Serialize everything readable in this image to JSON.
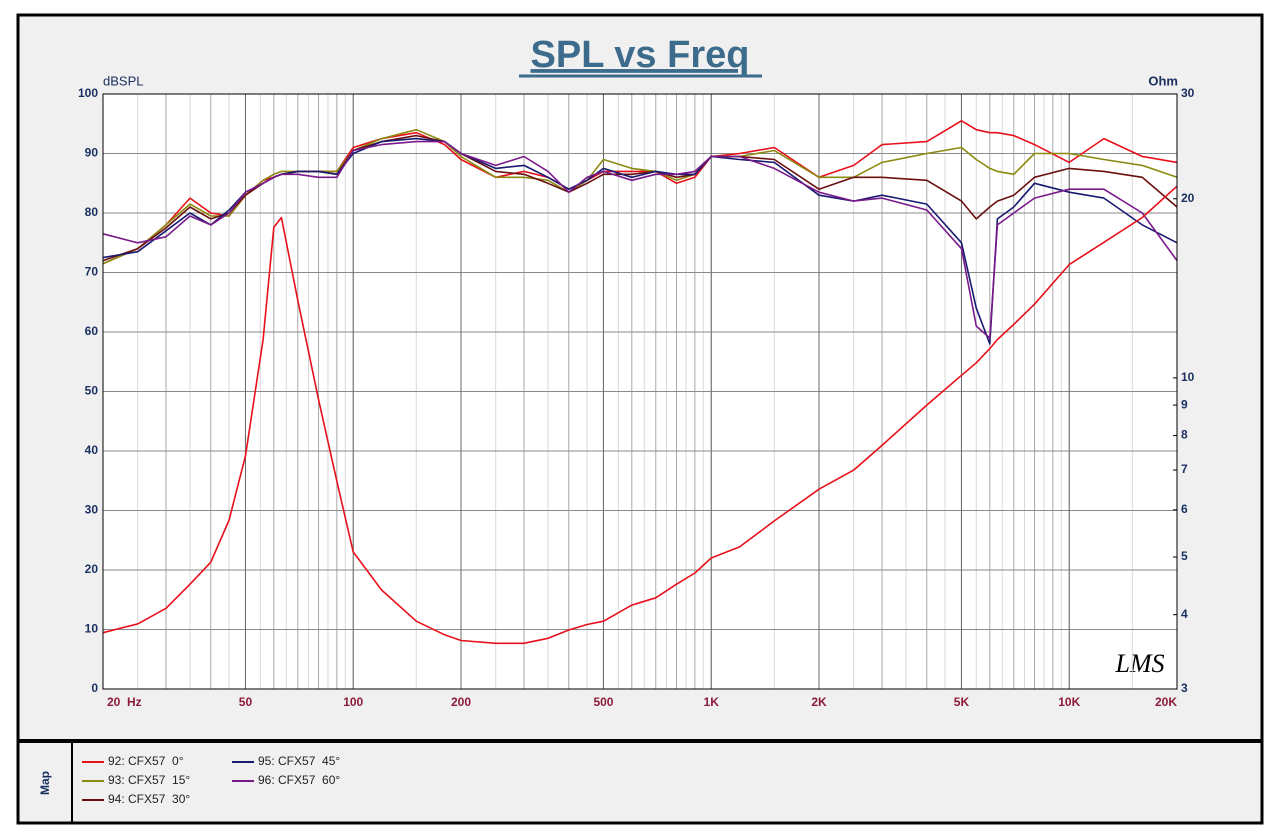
{
  "chart_data": {
    "type": "line",
    "title": "SPL vs Freq",
    "ylabel": "dBSPL",
    "y2label": "Ohm",
    "watermark": "LMS",
    "legend_title": "Map",
    "log_x": true,
    "y2_log": true,
    "grid": true,
    "x": [
      20,
      25,
      30,
      35,
      40,
      45,
      50,
      56,
      60,
      63,
      70,
      80,
      90,
      100,
      120,
      150,
      180,
      200,
      250,
      300,
      350,
      400,
      450,
      500,
      600,
      700,
      800,
      900,
      1000,
      1200,
      1500,
      2000,
      2500,
      3000,
      4000,
      5000,
      5500,
      6000,
      6300,
      7000,
      8000,
      10000,
      12500,
      16000,
      20000
    ],
    "xlim": [
      20,
      20000
    ],
    "xticks": [
      {
        "value": 20,
        "label": "20  Hz"
      },
      50,
      100,
      200,
      500,
      {
        "value": 1000,
        "label": "1K"
      },
      {
        "value": 2000,
        "label": "2K"
      },
      {
        "value": 5000,
        "label": "5K"
      },
      {
        "value": 10000,
        "label": "10K"
      },
      {
        "value": 20000,
        "label": "20K"
      }
    ],
    "ylim": [
      0,
      100
    ],
    "yticks": [
      0,
      10,
      20,
      30,
      40,
      50,
      60,
      70,
      80,
      90,
      100
    ],
    "y2lim": [
      3,
      30
    ],
    "y2ticks": [
      3,
      4,
      5,
      6,
      7,
      8,
      9,
      10,
      20,
      30
    ],
    "series": [
      {
        "name": "92: CFX57  0°",
        "color": "#e8101a",
        "values": [
          71.5,
          74,
          78,
          82.5,
          80,
          79.5,
          83,
          85.5,
          86,
          86.5,
          87,
          87,
          87,
          91,
          92.5,
          93.5,
          91.5,
          89,
          86,
          87,
          86,
          84,
          85.5,
          87,
          87,
          87,
          85,
          86,
          89.5,
          90,
          91,
          86,
          88,
          91.5,
          92,
          95.5,
          94,
          93.5,
          93.5,
          93,
          91.5,
          88.5,
          92.5,
          89.5,
          88.5
        ]
      },
      {
        "name": "93: CFX57  15°",
        "color": "#8a8a10",
        "values": [
          71.5,
          74,
          78,
          81.5,
          79.5,
          79.5,
          83,
          85.5,
          86.5,
          87,
          87,
          87,
          87,
          90.5,
          92.5,
          94,
          92,
          89.5,
          86,
          86,
          85.5,
          83.5,
          85.5,
          89,
          87.5,
          87,
          85.5,
          86.5,
          89.5,
          89.5,
          90.5,
          86,
          86,
          88.5,
          90,
          91,
          89,
          87.5,
          87,
          86.5,
          90,
          90,
          89,
          88,
          86
        ]
      },
      {
        "name": "94: CFX57  30°",
        "color": "#6a1010",
        "values": [
          72,
          74,
          77.5,
          81,
          79,
          80,
          83,
          85,
          86,
          86.5,
          87,
          87,
          86.5,
          90.5,
          92,
          93,
          92,
          90,
          87,
          86.5,
          85,
          83.5,
          85,
          86.5,
          86.5,
          87,
          86,
          86.5,
          89.5,
          89.5,
          89,
          84,
          86,
          86,
          85.5,
          82,
          79,
          81,
          82,
          83,
          86,
          87.5,
          87,
          86,
          81
        ]
      },
      {
        "name": "95: CFX57  45°",
        "color": "#1a1a70",
        "values": [
          72.5,
          73.5,
          77,
          80,
          78,
          80.5,
          83.5,
          85,
          86,
          86.5,
          87,
          87,
          86.5,
          90,
          92,
          92.5,
          92,
          90,
          87.5,
          88,
          86,
          84,
          85.5,
          87.5,
          86,
          87,
          86.5,
          86.5,
          89.5,
          89,
          88.5,
          83,
          82,
          83,
          81.5,
          75,
          64,
          58,
          79,
          81,
          85,
          83.5,
          82.5,
          78,
          75
        ]
      },
      {
        "name": "96: CFX57  60°",
        "color": "#7a1a8a",
        "values": [
          76.5,
          75,
          76,
          79.5,
          78,
          80,
          83.5,
          85,
          86,
          86.5,
          86.5,
          86,
          86,
          90.5,
          91.5,
          92,
          92,
          90,
          88,
          89.5,
          87,
          83.5,
          86,
          87,
          85.5,
          86.5,
          86.5,
          87,
          89.5,
          89.5,
          87.5,
          83.5,
          82,
          82.5,
          80.5,
          74,
          61,
          59,
          78,
          80,
          82.5,
          84,
          84,
          80,
          72
        ]
      },
      {
        "color": "#e8101a",
        "axis": "y2",
        "values": [
          3.73,
          3.86,
          4.1,
          4.5,
          4.9,
          5.77,
          7.4,
          11.6,
          17.9,
          18.6,
          13.5,
          9.2,
          6.7,
          5.1,
          4.4,
          3.9,
          3.7,
          3.62,
          3.58,
          3.58,
          3.65,
          3.77,
          3.85,
          3.9,
          4.15,
          4.27,
          4.5,
          4.7,
          4.98,
          5.2,
          5.75,
          6.5,
          7.0,
          7.7,
          9.0,
          10.1,
          10.6,
          11.2,
          11.6,
          12.3,
          13.3,
          15.5,
          16.9,
          18.6,
          21.0
        ]
      }
    ]
  }
}
